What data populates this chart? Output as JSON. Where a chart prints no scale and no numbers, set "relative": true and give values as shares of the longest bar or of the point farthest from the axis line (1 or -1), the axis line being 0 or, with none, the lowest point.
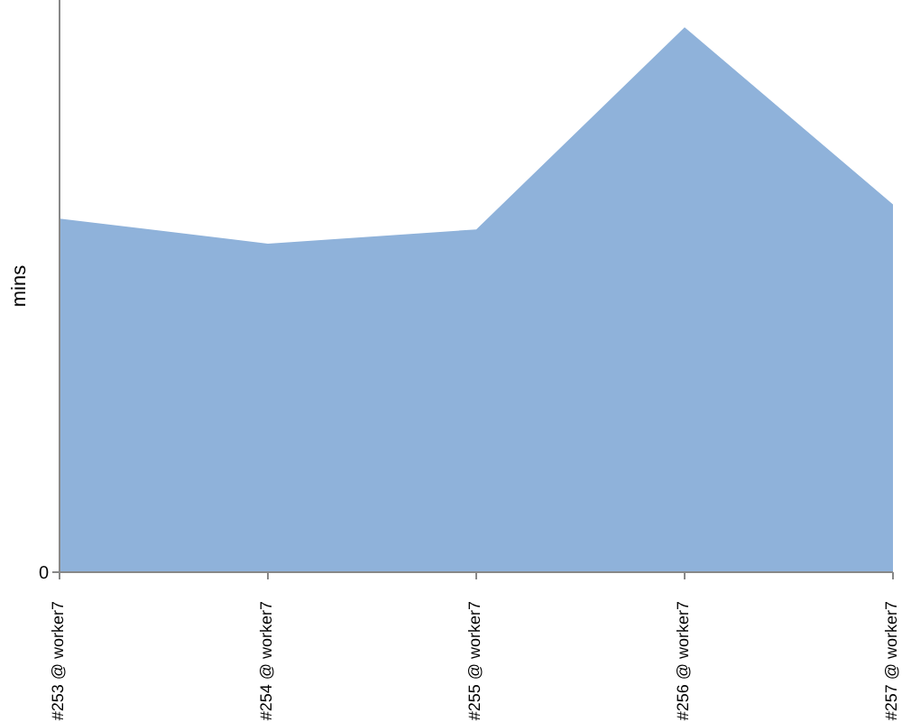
{
  "chart_data": {
    "type": "area",
    "ylabel": "mins",
    "relative": true,
    "annotations": [
      "0"
    ],
    "categories": [
      "#253 @ worker7",
      "#254 @ worker7",
      "#255 @ worker7",
      "#256 @ worker7",
      "#257 @ worker7"
    ],
    "series": [
      {
        "color": "#8fb2da",
        "values": [
          0.649,
          0.603,
          0.629,
          1,
          0.675
        ]
      }
    ]
  }
}
